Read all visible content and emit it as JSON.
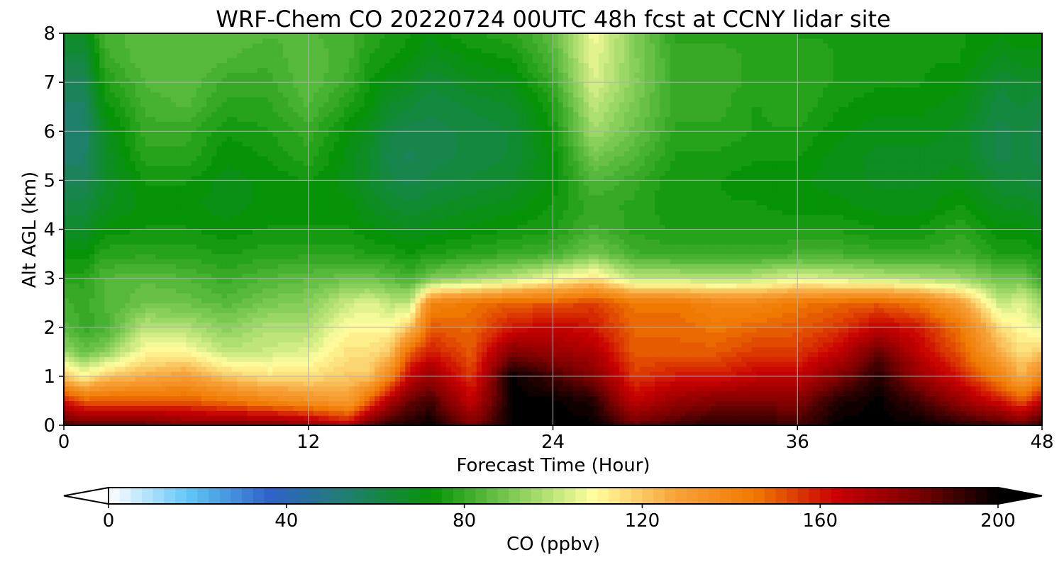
{
  "chart_data": {
    "type": "heatmap",
    "title": "WRF-Chem CO  20220724 00UTC 48h fcst at CCNY lidar site",
    "xlabel": "Forecast Time (Hour)",
    "ylabel": "Alt AGL (km)",
    "xlim": [
      0,
      48
    ],
    "ylim": [
      0,
      8
    ],
    "x_ticks": [
      "0",
      "12",
      "24",
      "36",
      "48"
    ],
    "y_ticks": [
      "0",
      "1",
      "2",
      "3",
      "4",
      "5",
      "6",
      "7",
      "8"
    ],
    "grid": true,
    "colorbar": {
      "label": "CO  (ppbv)",
      "range": [
        0,
        200
      ],
      "ticks": [
        "0",
        "40",
        "80",
        "120",
        "160",
        "200"
      ],
      "extend": "both",
      "orientation": "horizontal",
      "colors": [
        "#ffffff",
        "#5fc5f5",
        "#2f62c8",
        "#1f7f6a",
        "#079307",
        "#7ecb55",
        "#ffff9f",
        "#f7a43b",
        "#f07800",
        "#c80000",
        "#7a0000",
        "#000000"
      ]
    },
    "x": [
      0,
      1,
      2,
      4,
      6,
      8,
      10,
      12,
      14,
      15,
      16,
      17,
      18,
      20,
      22,
      24,
      26,
      28,
      30,
      32,
      34,
      36,
      38,
      40,
      42,
      44,
      46,
      47,
      48
    ],
    "y": [
      0.0,
      0.5,
      1.0,
      1.5,
      2.0,
      2.5,
      3.0,
      3.5,
      4.0,
      4.5,
      5.0,
      5.5,
      6.0,
      6.5,
      7.0,
      7.5,
      8.0
    ],
    "z": [
      [
        190,
        160,
        120,
        95,
        85,
        82,
        78,
        72,
        66,
        62,
        58,
        55,
        54,
        56,
        58,
        62,
        68
      ],
      [
        185,
        150,
        110,
        88,
        80,
        80,
        78,
        72,
        66,
        62,
        58,
        55,
        54,
        56,
        58,
        62,
        68
      ],
      [
        185,
        150,
        120,
        92,
        82,
        84,
        84,
        78,
        72,
        68,
        66,
        66,
        68,
        72,
        76,
        80,
        82
      ],
      [
        185,
        150,
        125,
        110,
        100,
        88,
        86,
        78,
        74,
        72,
        74,
        78,
        80,
        82,
        84,
        86,
        86
      ],
      [
        180,
        150,
        130,
        110,
        98,
        88,
        84,
        78,
        74,
        72,
        74,
        78,
        80,
        84,
        86,
        86,
        86
      ],
      [
        180,
        145,
        120,
        100,
        92,
        85,
        80,
        76,
        72,
        70,
        70,
        72,
        74,
        78,
        80,
        84,
        86
      ],
      [
        180,
        140,
        115,
        102,
        98,
        90,
        84,
        78,
        74,
        72,
        72,
        74,
        76,
        78,
        80,
        82,
        84
      ],
      [
        175,
        135,
        115,
        105,
        98,
        92,
        86,
        78,
        74,
        72,
        74,
        78,
        80,
        84,
        86,
        86,
        84
      ],
      [
        165,
        130,
        120,
        115,
        110,
        102,
        88,
        78,
        74,
        72,
        70,
        70,
        72,
        76,
        80,
        82,
        82
      ],
      [
        185,
        150,
        120,
        115,
        110,
        105,
        88,
        76,
        72,
        68,
        66,
        66,
        68,
        72,
        74,
        76,
        78
      ],
      [
        195,
        170,
        140,
        120,
        110,
        100,
        86,
        76,
        70,
        66,
        62,
        60,
        62,
        66,
        70,
        74,
        76
      ],
      [
        195,
        185,
        165,
        150,
        120,
        100,
        82,
        74,
        68,
        64,
        60,
        58,
        60,
        64,
        68,
        72,
        74
      ],
      [
        200,
        190,
        175,
        160,
        150,
        140,
        90,
        76,
        70,
        66,
        62,
        60,
        60,
        62,
        64,
        68,
        72
      ],
      [
        180,
        165,
        155,
        150,
        148,
        145,
        95,
        78,
        72,
        68,
        64,
        62,
        62,
        64,
        68,
        72,
        76
      ],
      [
        200,
        200,
        200,
        180,
        160,
        150,
        100,
        80,
        74,
        70,
        66,
        64,
        64,
        66,
        70,
        74,
        78
      ],
      [
        200,
        200,
        190,
        175,
        165,
        150,
        108,
        82,
        76,
        74,
        72,
        72,
        74,
        76,
        80,
        84,
        86
      ],
      [
        200,
        195,
        180,
        170,
        160,
        155,
        115,
        90,
        82,
        80,
        84,
        90,
        96,
        100,
        104,
        106,
        108
      ],
      [
        185,
        165,
        155,
        150,
        148,
        145,
        100,
        82,
        78,
        78,
        80,
        84,
        88,
        90,
        92,
        92,
        92
      ],
      [
        190,
        175,
        160,
        150,
        148,
        145,
        100,
        80,
        76,
        74,
        74,
        76,
        78,
        80,
        80,
        80,
        78
      ],
      [
        195,
        180,
        160,
        150,
        145,
        140,
        98,
        80,
        76,
        74,
        74,
        76,
        78,
        80,
        80,
        80,
        78
      ],
      [
        195,
        180,
        165,
        155,
        148,
        140,
        100,
        80,
        76,
        74,
        72,
        74,
        76,
        76,
        78,
        78,
        78
      ],
      [
        190,
        180,
        165,
        155,
        150,
        145,
        105,
        82,
        76,
        72,
        72,
        74,
        76,
        78,
        78,
        78,
        76
      ],
      [
        200,
        195,
        180,
        165,
        155,
        148,
        102,
        82,
        76,
        72,
        70,
        70,
        72,
        74,
        76,
        76,
        76
      ],
      [
        200,
        200,
        195,
        185,
        165,
        150,
        100,
        80,
        74,
        70,
        68,
        68,
        70,
        72,
        74,
        74,
        74
      ],
      [
        200,
        190,
        175,
        165,
        160,
        145,
        98,
        80,
        74,
        70,
        68,
        68,
        70,
        72,
        74,
        74,
        74
      ],
      [
        195,
        175,
        160,
        150,
        145,
        130,
        95,
        82,
        78,
        74,
        70,
        68,
        68,
        70,
        72,
        74,
        74
      ],
      [
        190,
        160,
        140,
        125,
        115,
        100,
        88,
        76,
        72,
        68,
        64,
        60,
        60,
        62,
        64,
        68,
        72
      ],
      [
        185,
        150,
        125,
        115,
        110,
        105,
        90,
        76,
        72,
        68,
        64,
        62,
        62,
        64,
        66,
        70,
        74
      ],
      [
        195,
        165,
        140,
        120,
        105,
        95,
        80,
        74,
        70,
        66,
        62,
        60,
        60,
        62,
        66,
        70,
        74
      ]
    ]
  }
}
